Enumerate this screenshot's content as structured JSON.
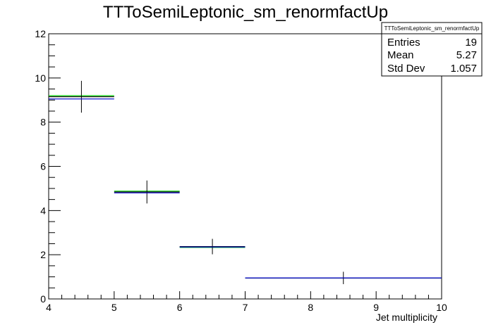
{
  "chart_data": {
    "type": "histogram",
    "title": "TTToSemiLeptonic_sm_renormfactUp",
    "xlabel": "Jet multiplicity",
    "ylabel": "",
    "xlim": [
      4,
      10
    ],
    "ylim": [
      0,
      12
    ],
    "x_ticks": [
      "4",
      "5",
      "6",
      "7",
      "8",
      "9",
      "10"
    ],
    "y_ticks": [
      "0",
      "2",
      "4",
      "6",
      "8",
      "10",
      "12"
    ],
    "bins": [
      {
        "low": 4,
        "high": 5,
        "center": 4.5
      },
      {
        "low": 5,
        "high": 6,
        "center": 5.5
      },
      {
        "low": 6,
        "high": 7,
        "center": 6.5
      },
      {
        "low": 7,
        "high": 10,
        "center": 8.5
      }
    ],
    "series": [
      {
        "color": "#00cc00",
        "values": [
          9.2,
          4.88,
          2.33,
          0.95
        ]
      },
      {
        "color": "#000000",
        "values": [
          9.15,
          4.84,
          2.37,
          0.95
        ],
        "errors": [
          0.72,
          0.52,
          0.35,
          0.28
        ]
      },
      {
        "color": "#0000cc",
        "values": [
          9.05,
          4.8,
          2.35,
          0.95
        ]
      }
    ],
    "stats": {
      "title": "TTToSemiLeptonic_sm_renormfactUp",
      "rows": [
        {
          "label": "Entries",
          "value": "19"
        },
        {
          "label": "Mean",
          "value": "5.27"
        },
        {
          "label": "Std Dev",
          "value": "1.057"
        }
      ]
    }
  }
}
